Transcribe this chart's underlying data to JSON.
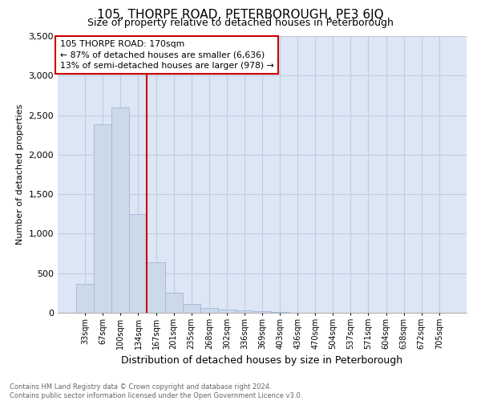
{
  "title": "105, THORPE ROAD, PETERBOROUGH, PE3 6JQ",
  "subtitle": "Size of property relative to detached houses in Peterborough",
  "xlabel": "Distribution of detached houses by size in Peterborough",
  "ylabel": "Number of detached properties",
  "footer_line1": "Contains HM Land Registry data © Crown copyright and database right 2024.",
  "footer_line2": "Contains public sector information licensed under the Open Government Licence v3.0.",
  "categories": [
    "33sqm",
    "67sqm",
    "100sqm",
    "134sqm",
    "167sqm",
    "201sqm",
    "235sqm",
    "268sqm",
    "302sqm",
    "336sqm",
    "369sqm",
    "403sqm",
    "436sqm",
    "470sqm",
    "504sqm",
    "537sqm",
    "571sqm",
    "604sqm",
    "638sqm",
    "672sqm",
    "705sqm"
  ],
  "values": [
    370,
    2380,
    2600,
    1250,
    640,
    255,
    110,
    60,
    45,
    30,
    20,
    10,
    0,
    0,
    0,
    0,
    0,
    0,
    0,
    0,
    0
  ],
  "bar_color": "#ccd9ea",
  "bar_edge_color": "#a0b8d8",
  "vline_color": "#cc0000",
  "annotation_title": "105 THORPE ROAD: 170sqm",
  "annotation_line1": "← 87% of detached houses are smaller (6,636)",
  "annotation_line2": "13% of semi-detached houses are larger (978) →",
  "annotation_box_color": "#cc0000",
  "annotation_bg": "#ffffff",
  "ylim": [
    0,
    3500
  ],
  "yticks": [
    0,
    500,
    1000,
    1500,
    2000,
    2500,
    3000,
    3500
  ],
  "grid_color": "#c0cce0",
  "bg_color": "#dde6f5",
  "title_fontsize": 11,
  "subtitle_fontsize": 9,
  "ylabel_fontsize": 8,
  "xlabel_fontsize": 9
}
